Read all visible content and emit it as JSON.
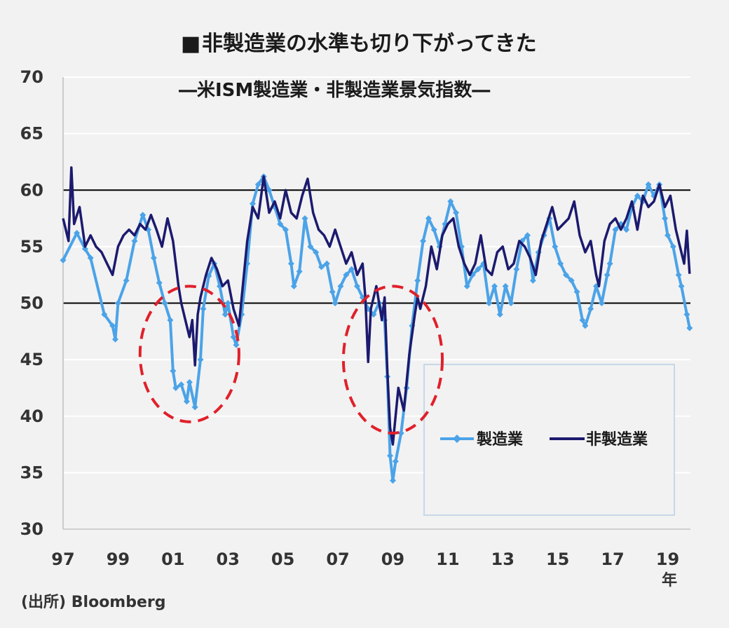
{
  "title_marker": "■",
  "title": "非製造業の水準も切り下がってきた",
  "subtitle": "―米ISM製造業・非製造業景気指数―",
  "source": "(出所) Bloomberg",
  "x_unit": "年",
  "colors": {
    "manufacturing": "#4ba3e8",
    "non_manufacturing": "#1c1a6e",
    "title_marker": "#c00000",
    "circle": "#e0202a",
    "reference_line": "#000000"
  },
  "chart_data": {
    "type": "line",
    "title": "非製造業の水準も切り下がってきた",
    "subtitle": "―米ISM製造業・非製造業景気指数―",
    "ylim": [
      30,
      70
    ],
    "yticks": [
      30,
      35,
      40,
      45,
      50,
      55,
      60,
      65,
      70
    ],
    "xlim": [
      1997.0,
      2019.83
    ],
    "xticks": [
      {
        "value": 1997,
        "label": "97"
      },
      {
        "value": 1999,
        "label": "99"
      },
      {
        "value": 2001,
        "label": "01"
      },
      {
        "value": 2003,
        "label": "03"
      },
      {
        "value": 2005,
        "label": "05"
      },
      {
        "value": 2007,
        "label": "07"
      },
      {
        "value": 2009,
        "label": "09"
      },
      {
        "value": 2011,
        "label": "11"
      },
      {
        "value": 2013,
        "label": "13"
      },
      {
        "value": 2015,
        "label": "15"
      },
      {
        "value": 2017,
        "label": "17"
      },
      {
        "value": 2019,
        "label": "19"
      }
    ],
    "reference_lines": [
      50,
      60
    ],
    "grid": "horizontal",
    "legend_position": "bottom-right",
    "series": [
      {
        "name": "製造業",
        "marker": "diamond",
        "points": [
          [
            1997.0,
            53.8
          ],
          [
            1997.5,
            56.2
          ],
          [
            1997.8,
            54.8
          ],
          [
            1998.0,
            54.0
          ],
          [
            1998.5,
            49.0
          ],
          [
            1998.8,
            48.0
          ],
          [
            1998.9,
            46.8
          ],
          [
            1999.0,
            50.0
          ],
          [
            1999.3,
            52.0
          ],
          [
            1999.6,
            55.5
          ],
          [
            1999.9,
            57.8
          ],
          [
            2000.1,
            56.5
          ],
          [
            2000.3,
            54.0
          ],
          [
            2000.5,
            51.8
          ],
          [
            2000.7,
            50.0
          ],
          [
            2000.9,
            48.5
          ],
          [
            2001.0,
            44.0
          ],
          [
            2001.1,
            42.5
          ],
          [
            2001.3,
            42.8
          ],
          [
            2001.5,
            41.3
          ],
          [
            2001.6,
            43.0
          ],
          [
            2001.8,
            40.8
          ],
          [
            2002.0,
            45.0
          ],
          [
            2002.1,
            49.5
          ],
          [
            2002.3,
            52.4
          ],
          [
            2002.5,
            53.5
          ],
          [
            2002.7,
            51.5
          ],
          [
            2002.9,
            49.0
          ],
          [
            2003.0,
            50.0
          ],
          [
            2003.2,
            47.0
          ],
          [
            2003.3,
            46.3
          ],
          [
            2003.5,
            49.0
          ],
          [
            2003.7,
            53.5
          ],
          [
            2003.9,
            58.8
          ],
          [
            2004.1,
            60.5
          ],
          [
            2004.3,
            61.2
          ],
          [
            2004.5,
            60.0
          ],
          [
            2004.7,
            58.5
          ],
          [
            2004.9,
            57.0
          ],
          [
            2005.1,
            56.5
          ],
          [
            2005.3,
            53.5
          ],
          [
            2005.4,
            51.5
          ],
          [
            2005.6,
            52.8
          ],
          [
            2005.8,
            57.5
          ],
          [
            2006.0,
            55.0
          ],
          [
            2006.2,
            54.5
          ],
          [
            2006.4,
            53.2
          ],
          [
            2006.6,
            53.5
          ],
          [
            2006.8,
            51.0
          ],
          [
            2006.9,
            50.0
          ],
          [
            2007.1,
            51.5
          ],
          [
            2007.3,
            52.5
          ],
          [
            2007.5,
            53.0
          ],
          [
            2007.7,
            51.5
          ],
          [
            2007.9,
            50.5
          ],
          [
            2008.1,
            49.5
          ],
          [
            2008.3,
            49.0
          ],
          [
            2008.5,
            50.0
          ],
          [
            2008.7,
            48.5
          ],
          [
            2008.8,
            43.5
          ],
          [
            2008.9,
            36.5
          ],
          [
            2009.0,
            34.3
          ],
          [
            2009.1,
            36.0
          ],
          [
            2009.3,
            38.5
          ],
          [
            2009.5,
            42.5
          ],
          [
            2009.7,
            48.0
          ],
          [
            2009.9,
            52.0
          ],
          [
            2010.1,
            55.5
          ],
          [
            2010.3,
            57.5
          ],
          [
            2010.5,
            56.5
          ],
          [
            2010.7,
            55.0
          ],
          [
            2010.9,
            57.0
          ],
          [
            2011.1,
            59.0
          ],
          [
            2011.3,
            58.0
          ],
          [
            2011.5,
            55.0
          ],
          [
            2011.7,
            51.5
          ],
          [
            2011.9,
            52.5
          ],
          [
            2012.1,
            53.0
          ],
          [
            2012.3,
            53.5
          ],
          [
            2012.5,
            50.0
          ],
          [
            2012.7,
            51.5
          ],
          [
            2012.9,
            49.0
          ],
          [
            2013.1,
            51.5
          ],
          [
            2013.3,
            50.0
          ],
          [
            2013.5,
            53.0
          ],
          [
            2013.7,
            55.5
          ],
          [
            2013.9,
            56.0
          ],
          [
            2014.1,
            52.0
          ],
          [
            2014.3,
            54.5
          ],
          [
            2014.5,
            56.0
          ],
          [
            2014.7,
            57.5
          ],
          [
            2014.9,
            55.0
          ],
          [
            2015.1,
            53.5
          ],
          [
            2015.3,
            52.5
          ],
          [
            2015.5,
            52.0
          ],
          [
            2015.7,
            51.0
          ],
          [
            2015.9,
            48.5
          ],
          [
            2016.0,
            48.0
          ],
          [
            2016.2,
            49.5
          ],
          [
            2016.4,
            51.5
          ],
          [
            2016.6,
            50.0
          ],
          [
            2016.8,
            52.5
          ],
          [
            2016.9,
            53.5
          ],
          [
            2017.1,
            56.5
          ],
          [
            2017.3,
            57.0
          ],
          [
            2017.5,
            56.5
          ],
          [
            2017.7,
            58.5
          ],
          [
            2017.9,
            59.5
          ],
          [
            2018.1,
            59.0
          ],
          [
            2018.3,
            60.5
          ],
          [
            2018.5,
            59.5
          ],
          [
            2018.7,
            60.5
          ],
          [
            2018.9,
            57.5
          ],
          [
            2019.0,
            56.0
          ],
          [
            2019.2,
            55.0
          ],
          [
            2019.4,
            52.5
          ],
          [
            2019.5,
            51.5
          ],
          [
            2019.7,
            49.0
          ],
          [
            2019.8,
            47.8
          ]
        ]
      },
      {
        "name": "非製造業",
        "marker": "none",
        "points": [
          [
            1997.0,
            57.5
          ],
          [
            1997.2,
            55.5
          ],
          [
            1997.3,
            62.0
          ],
          [
            1997.4,
            57.0
          ],
          [
            1997.6,
            58.5
          ],
          [
            1997.8,
            55.0
          ],
          [
            1998.0,
            56.0
          ],
          [
            1998.2,
            55.0
          ],
          [
            1998.4,
            54.5
          ],
          [
            1998.6,
            53.5
          ],
          [
            1998.8,
            52.5
          ],
          [
            1999.0,
            55.0
          ],
          [
            1999.2,
            56.0
          ],
          [
            1999.4,
            56.5
          ],
          [
            1999.6,
            56.0
          ],
          [
            1999.8,
            57.0
          ],
          [
            2000.0,
            56.5
          ],
          [
            2000.2,
            57.8
          ],
          [
            2000.4,
            56.5
          ],
          [
            2000.6,
            55.0
          ],
          [
            2000.8,
            57.5
          ],
          [
            2001.0,
            55.5
          ],
          [
            2001.2,
            51.5
          ],
          [
            2001.3,
            50.0
          ],
          [
            2001.5,
            48.0
          ],
          [
            2001.6,
            47.0
          ],
          [
            2001.7,
            48.5
          ],
          [
            2001.8,
            44.5
          ],
          [
            2001.9,
            49.0
          ],
          [
            2002.0,
            50.5
          ],
          [
            2002.2,
            52.5
          ],
          [
            2002.4,
            54.0
          ],
          [
            2002.6,
            53.0
          ],
          [
            2002.8,
            51.5
          ],
          [
            2003.0,
            52.0
          ],
          [
            2003.2,
            49.5
          ],
          [
            2003.4,
            48.0
          ],
          [
            2003.5,
            50.5
          ],
          [
            2003.7,
            55.5
          ],
          [
            2003.9,
            58.5
          ],
          [
            2004.1,
            57.5
          ],
          [
            2004.3,
            61.2
          ],
          [
            2004.5,
            58.0
          ],
          [
            2004.7,
            59.0
          ],
          [
            2004.9,
            57.5
          ],
          [
            2005.1,
            60.0
          ],
          [
            2005.3,
            58.0
          ],
          [
            2005.5,
            57.5
          ],
          [
            2005.7,
            59.5
          ],
          [
            2005.9,
            61.0
          ],
          [
            2006.1,
            58.0
          ],
          [
            2006.3,
            56.5
          ],
          [
            2006.5,
            56.0
          ],
          [
            2006.7,
            55.0
          ],
          [
            2006.9,
            56.5
          ],
          [
            2007.1,
            55.0
          ],
          [
            2007.3,
            53.5
          ],
          [
            2007.5,
            54.5
          ],
          [
            2007.7,
            52.5
          ],
          [
            2007.9,
            53.5
          ],
          [
            2008.0,
            50.5
          ],
          [
            2008.1,
            44.8
          ],
          [
            2008.2,
            49.5
          ],
          [
            2008.4,
            51.5
          ],
          [
            2008.6,
            48.5
          ],
          [
            2008.7,
            50.5
          ],
          [
            2008.8,
            44.0
          ],
          [
            2008.9,
            39.0
          ],
          [
            2009.0,
            37.5
          ],
          [
            2009.2,
            42.5
          ],
          [
            2009.4,
            40.5
          ],
          [
            2009.6,
            45.5
          ],
          [
            2009.8,
            49.0
          ],
          [
            2009.9,
            50.5
          ],
          [
            2010.0,
            49.5
          ],
          [
            2010.2,
            51.5
          ],
          [
            2010.4,
            55.0
          ],
          [
            2010.6,
            53.0
          ],
          [
            2010.8,
            56.0
          ],
          [
            2011.0,
            57.0
          ],
          [
            2011.2,
            57.5
          ],
          [
            2011.4,
            55.0
          ],
          [
            2011.6,
            53.5
          ],
          [
            2011.8,
            52.5
          ],
          [
            2012.0,
            53.5
          ],
          [
            2012.2,
            56.0
          ],
          [
            2012.4,
            53.0
          ],
          [
            2012.6,
            52.5
          ],
          [
            2012.8,
            54.5
          ],
          [
            2013.0,
            55.0
          ],
          [
            2013.2,
            53.0
          ],
          [
            2013.4,
            53.5
          ],
          [
            2013.6,
            55.5
          ],
          [
            2013.8,
            55.0
          ],
          [
            2014.0,
            54.0
          ],
          [
            2014.2,
            52.5
          ],
          [
            2014.4,
            55.5
          ],
          [
            2014.6,
            57.0
          ],
          [
            2014.8,
            58.5
          ],
          [
            2015.0,
            56.5
          ],
          [
            2015.2,
            57.0
          ],
          [
            2015.4,
            57.5
          ],
          [
            2015.6,
            59.0
          ],
          [
            2015.8,
            56.0
          ],
          [
            2016.0,
            54.5
          ],
          [
            2016.2,
            55.5
          ],
          [
            2016.4,
            52.5
          ],
          [
            2016.5,
            51.5
          ],
          [
            2016.7,
            55.5
          ],
          [
            2016.9,
            57.0
          ],
          [
            2017.1,
            57.5
          ],
          [
            2017.3,
            56.5
          ],
          [
            2017.5,
            57.5
          ],
          [
            2017.7,
            59.0
          ],
          [
            2017.9,
            56.5
          ],
          [
            2018.1,
            59.5
          ],
          [
            2018.3,
            58.5
          ],
          [
            2018.5,
            59.0
          ],
          [
            2018.7,
            60.5
          ],
          [
            2018.9,
            58.5
          ],
          [
            2019.1,
            59.5
          ],
          [
            2019.3,
            56.5
          ],
          [
            2019.4,
            55.5
          ],
          [
            2019.6,
            53.5
          ],
          [
            2019.7,
            56.4
          ],
          [
            2019.8,
            52.6
          ]
        ]
      }
    ],
    "annotations": [
      {
        "type": "dashed-ellipse",
        "cx": 2001.6,
        "cy": 45.5,
        "rx_years": 1.8,
        "ry_units": 6.0
      },
      {
        "type": "dashed-ellipse",
        "cx": 2009.0,
        "cy": 45.0,
        "rx_years": 1.8,
        "ry_units": 6.5
      }
    ]
  }
}
